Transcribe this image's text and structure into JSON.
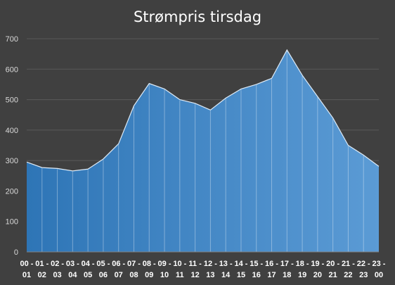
{
  "chart_data": {
    "type": "area",
    "title": "Strømpris tirsdag",
    "xlabel": "",
    "ylabel": "",
    "ylim": [
      0,
      700
    ],
    "yticks": [
      0,
      100,
      200,
      300,
      400,
      500,
      600,
      700
    ],
    "grid": true,
    "legend": "none",
    "categories": [
      [
        "00 -",
        "01"
      ],
      [
        "01 -",
        "02"
      ],
      [
        "02 -",
        "03"
      ],
      [
        "03 -",
        "04"
      ],
      [
        "04 -",
        "05"
      ],
      [
        "05 -",
        "06"
      ],
      [
        "06 -",
        "07"
      ],
      [
        "07 -",
        "08"
      ],
      [
        "08 -",
        "09"
      ],
      [
        "09 -",
        "10"
      ],
      [
        "10 -",
        "11"
      ],
      [
        "11 -",
        "12"
      ],
      [
        "12 -",
        "13"
      ],
      [
        "13 -",
        "14"
      ],
      [
        "14 -",
        "15"
      ],
      [
        "15 -",
        "16"
      ],
      [
        "16 -",
        "17"
      ],
      [
        "17 -",
        "18"
      ],
      [
        "18 -",
        "19"
      ],
      [
        "19 -",
        "20"
      ],
      [
        "20 -",
        "21"
      ],
      [
        "21 -",
        "22"
      ],
      [
        "22 -",
        "23"
      ],
      [
        "23 -",
        "00"
      ]
    ],
    "values": [
      295,
      277,
      274,
      266,
      272,
      305,
      355,
      480,
      553,
      535,
      500,
      488,
      466,
      505,
      535,
      550,
      570,
      663,
      580,
      510,
      440,
      350,
      318,
      281
    ],
    "colors": {
      "background": "#404040",
      "fill_start": "#2e75b6",
      "fill_end": "#5b9bd5",
      "line": "#deebf7",
      "grid": "#595959",
      "text": "#d9d9d9"
    }
  }
}
